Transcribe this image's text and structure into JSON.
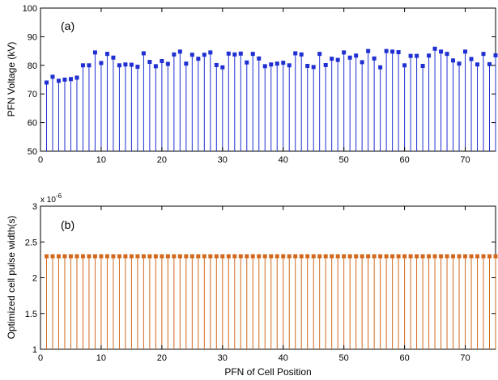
{
  "chart_data": [
    {
      "type": "stem",
      "panel_label": "(a)",
      "title": "",
      "xlabel": "",
      "ylabel": "PFN Voltage (kV)",
      "xlim": [
        0,
        75
      ],
      "ylim": [
        50,
        100
      ],
      "xticks": [
        0,
        10,
        20,
        30,
        40,
        50,
        60,
        70
      ],
      "xtick_labels": [
        "0",
        "10",
        "20",
        "30",
        "40",
        "50",
        "60",
        "70"
      ],
      "yticks": [
        50,
        60,
        70,
        80,
        90,
        100
      ],
      "ytick_labels": [
        "50",
        "60",
        "70",
        "80",
        "90",
        "100"
      ],
      "color": "#1f2fd1",
      "marker": "square",
      "grid": false,
      "x": [
        1,
        2,
        3,
        4,
        5,
        6,
        7,
        8,
        9,
        10,
        11,
        12,
        13,
        14,
        15,
        16,
        17,
        18,
        19,
        20,
        21,
        22,
        23,
        24,
        25,
        26,
        27,
        28,
        29,
        30,
        31,
        32,
        33,
        34,
        35,
        36,
        37,
        38,
        39,
        40,
        41,
        42,
        43,
        44,
        45,
        46,
        47,
        48,
        49,
        50,
        51,
        52,
        53,
        54,
        55,
        56,
        57,
        58,
        59,
        60,
        61,
        62,
        63,
        64,
        65,
        66,
        67,
        68,
        69,
        70,
        71,
        72,
        73,
        74,
        75
      ],
      "values": [
        74,
        76,
        74.6,
        75,
        75.2,
        75.7,
        80,
        80,
        84.5,
        80.8,
        84,
        82.7,
        80,
        80.3,
        80.2,
        79.5,
        84.2,
        81.2,
        79.7,
        81.5,
        80.5,
        83.8,
        84.8,
        80.6,
        83.7,
        82.3,
        83.7,
        84.5,
        80.1,
        79.3,
        84.1,
        83.8,
        84.1,
        81,
        84,
        82.4,
        79.7,
        80.3,
        80.6,
        80.9,
        80,
        84.2,
        83.8,
        79.8,
        79.4,
        84,
        80.1,
        82.3,
        81.9,
        84.5,
        82.7,
        83.4,
        81.1,
        85,
        82.4,
        79.3,
        85,
        84.8,
        84.6,
        80,
        83.3,
        83.3,
        79.8,
        83.4,
        85.8,
        84.8,
        84,
        81.7,
        80.6,
        84.8,
        82.2,
        80.3,
        84,
        80.4,
        83.5
      ]
    },
    {
      "type": "stem",
      "panel_label": "(b)",
      "title": "",
      "xlabel": "PFN of Cell Position",
      "ylabel": "Optimized cell pulse width(s)",
      "xlim": [
        0,
        75
      ],
      "ylim": [
        1,
        3
      ],
      "y_exponent_label": "x 10",
      "y_exponent": "-6",
      "xticks": [
        0,
        10,
        20,
        30,
        40,
        50,
        60,
        70
      ],
      "xtick_labels": [
        "0",
        "10",
        "20",
        "30",
        "40",
        "50",
        "60",
        "70"
      ],
      "yticks": [
        1,
        1.5,
        2,
        2.5,
        3
      ],
      "ytick_labels": [
        "1",
        "1.5",
        "2",
        "2.5",
        "3"
      ],
      "color": "#d2691e",
      "marker": "square",
      "grid": false,
      "x": [
        1,
        2,
        3,
        4,
        5,
        6,
        7,
        8,
        9,
        10,
        11,
        12,
        13,
        14,
        15,
        16,
        17,
        18,
        19,
        20,
        21,
        22,
        23,
        24,
        25,
        26,
        27,
        28,
        29,
        30,
        31,
        32,
        33,
        34,
        35,
        36,
        37,
        38,
        39,
        40,
        41,
        42,
        43,
        44,
        45,
        46,
        47,
        48,
        49,
        50,
        51,
        52,
        53,
        54,
        55,
        56,
        57,
        58,
        59,
        60,
        61,
        62,
        63,
        64,
        65,
        66,
        67,
        68,
        69,
        70,
        71,
        72,
        73,
        74,
        75
      ],
      "values": [
        2.3,
        2.3,
        2.3,
        2.3,
        2.3,
        2.3,
        2.3,
        2.3,
        2.3,
        2.3,
        2.3,
        2.3,
        2.3,
        2.3,
        2.3,
        2.3,
        2.3,
        2.3,
        2.3,
        2.3,
        2.3,
        2.3,
        2.3,
        2.3,
        2.3,
        2.3,
        2.3,
        2.3,
        2.3,
        2.3,
        2.3,
        2.3,
        2.3,
        2.3,
        2.3,
        2.3,
        2.3,
        2.3,
        2.3,
        2.3,
        2.3,
        2.3,
        2.3,
        2.3,
        2.3,
        2.3,
        2.3,
        2.3,
        2.3,
        2.3,
        2.3,
        2.3,
        2.3,
        2.3,
        2.3,
        2.3,
        2.3,
        2.3,
        2.3,
        2.3,
        2.3,
        2.3,
        2.3,
        2.3,
        2.3,
        2.3,
        2.3,
        2.3,
        2.3,
        2.3,
        2.3,
        2.3,
        2.3,
        2.3,
        2.3
      ]
    }
  ]
}
